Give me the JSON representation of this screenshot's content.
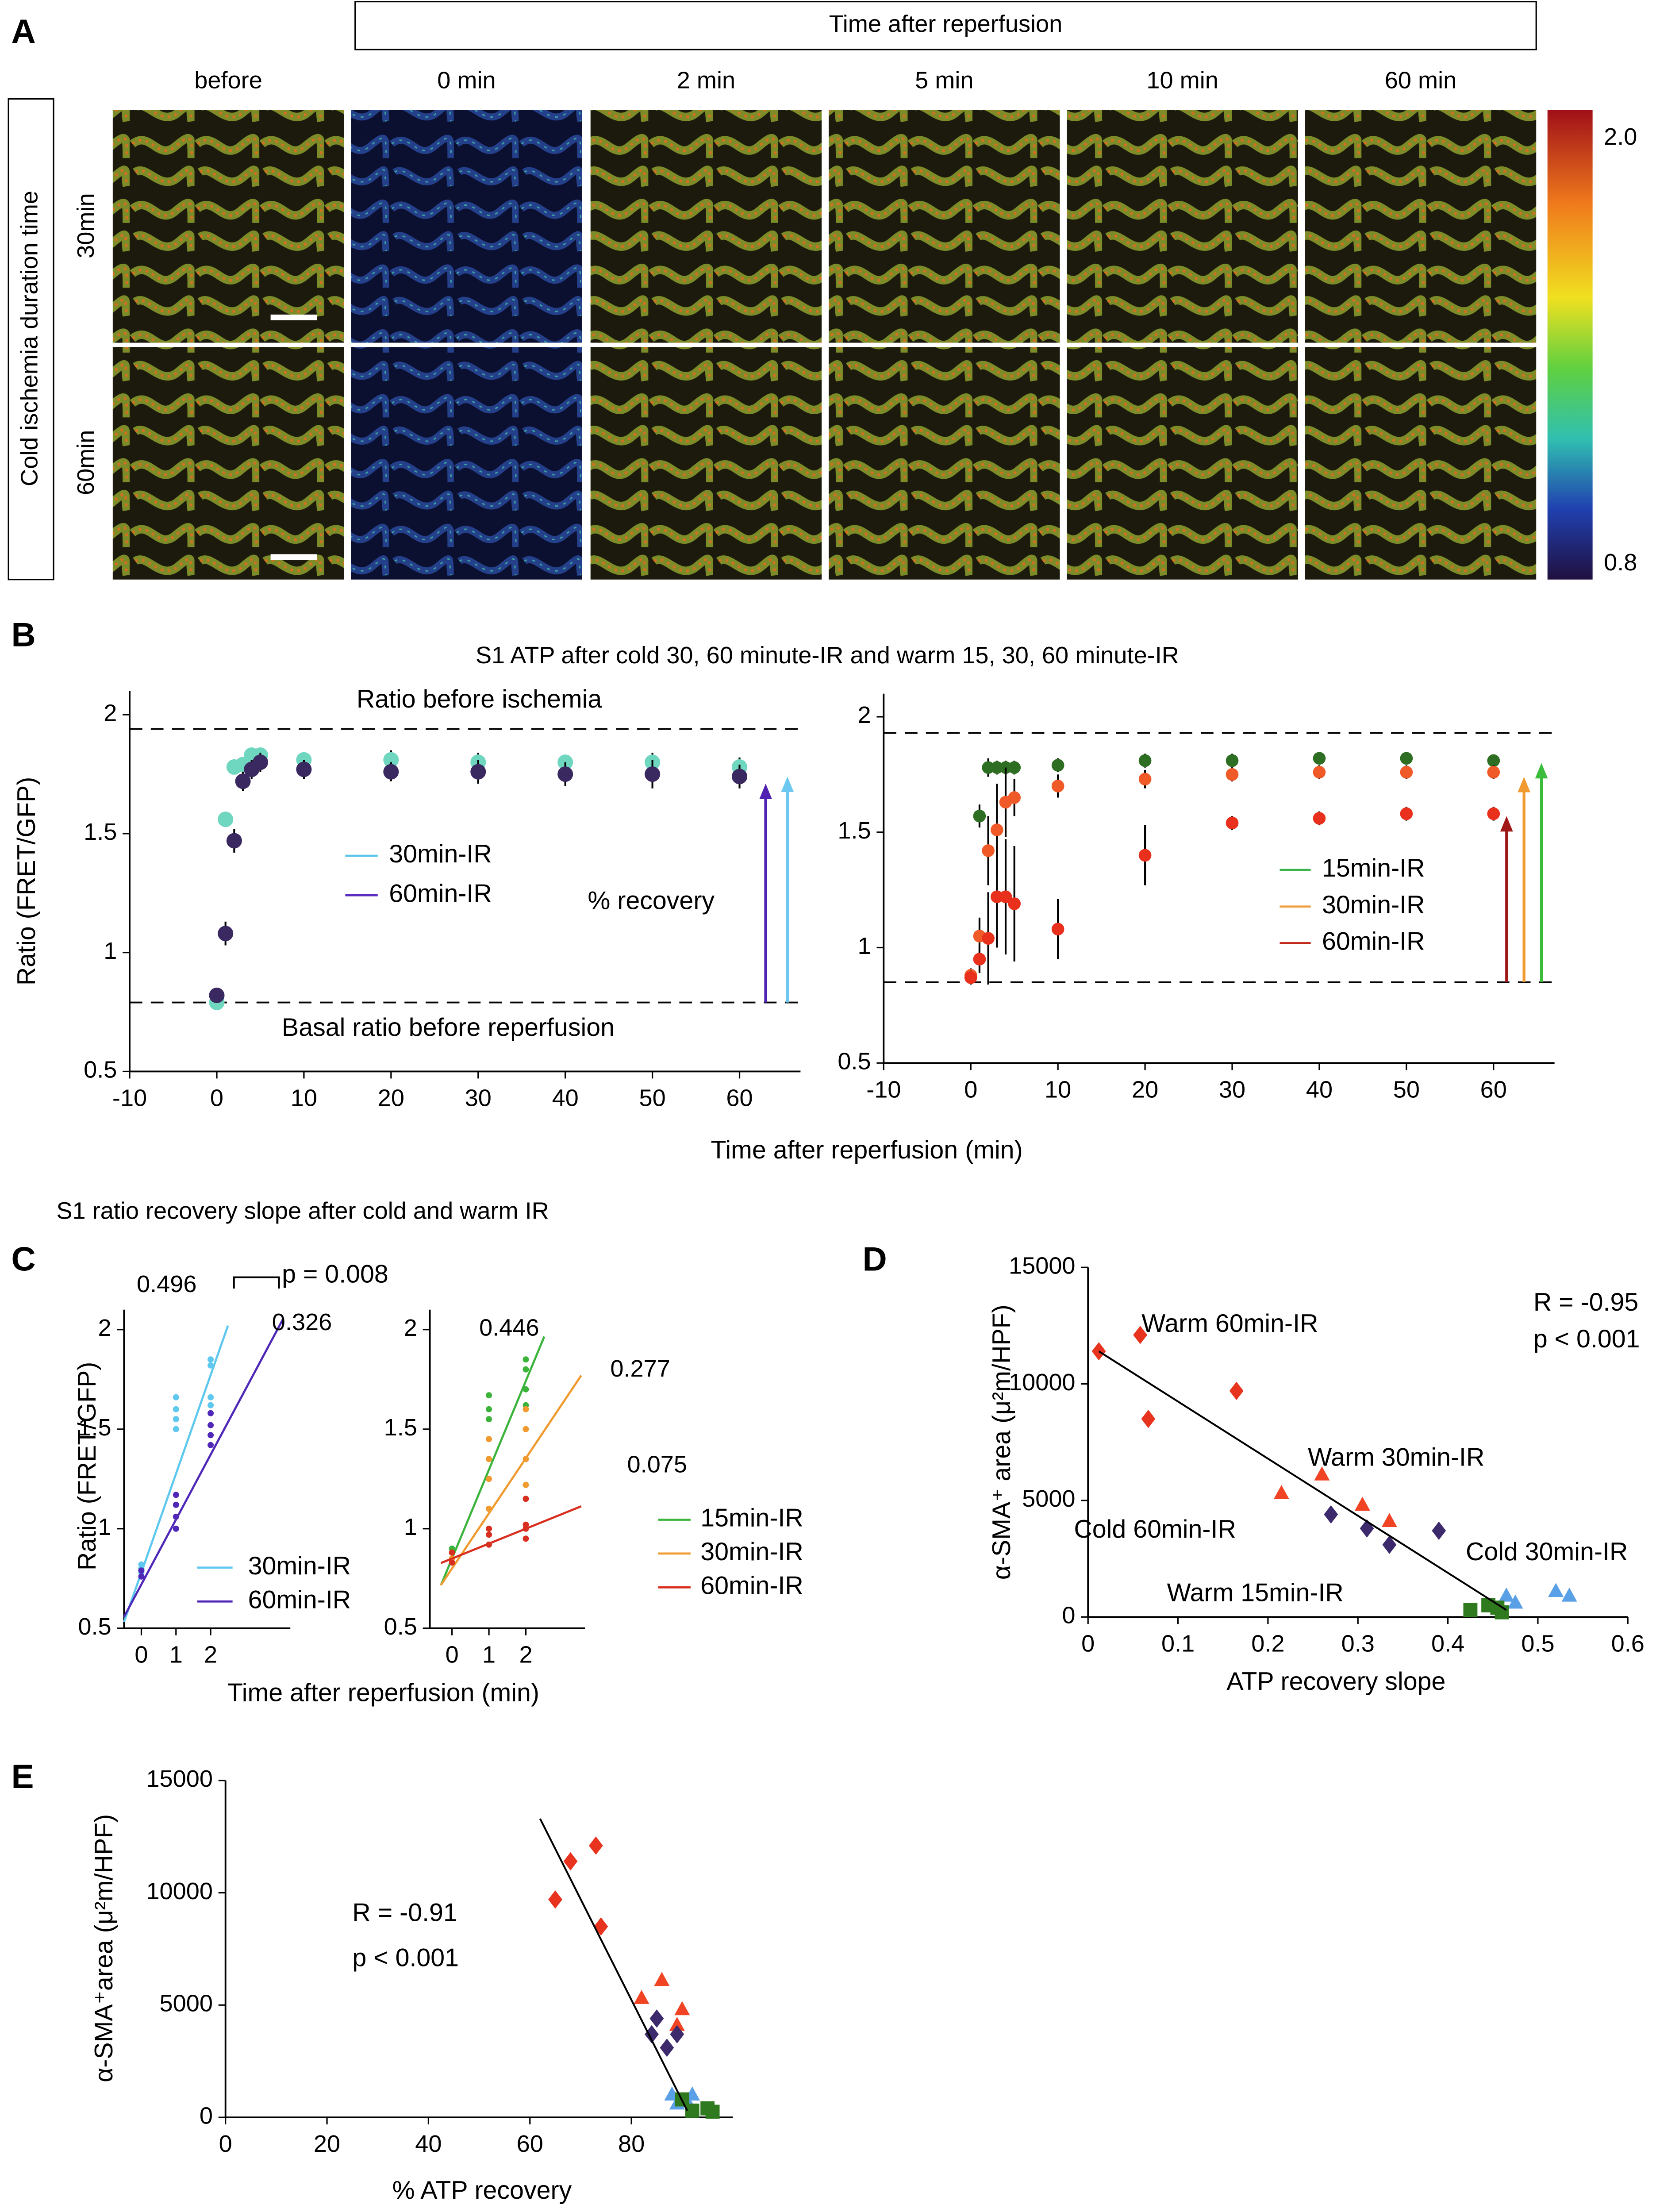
{
  "panel_a": {
    "label": "A",
    "header": "Time after reperfusion",
    "columns": [
      "before",
      "0 min",
      "2 min",
      "5 min",
      "10 min",
      "60 min"
    ],
    "rows": [
      "30min",
      "60min"
    ],
    "row_header": "Cold ischemia duration time",
    "colorbar": [
      {
        "value": 2.0,
        "label": "2.0"
      },
      0.8
    ]
  },
  "chart_data": [
    {
      "type": "scatter",
      "panel": "B",
      "title": "S1 ATP after cold 30, 60 minute-IR and warm 15, 30, 60 minute-IR",
      "x_label": "Time  after reperfusion (min)",
      "y_label": "Ratio (FRET/GFP)",
      "xlim": [
        -10,
        67
      ],
      "ylim": [
        0.5,
        2.1
      ],
      "xticks": [
        -10,
        0,
        10,
        20,
        30,
        40,
        50,
        60
      ],
      "yticks": [
        0.5,
        1,
        1.5,
        2
      ],
      "reference_lines": [
        1.94,
        0.79
      ],
      "annotations": [
        "Ratio before ischemia",
        "Basal ratio before reperfusion",
        "% recovery"
      ],
      "series": [
        {
          "name": "30min-IR",
          "color": "#5bc6ea",
          "marker_color": "#6fd6bf",
          "marker": "circle",
          "x": [
            0,
            1,
            2,
            3,
            4,
            5,
            10,
            20,
            30,
            40,
            50,
            60
          ],
          "values": [
            0.79,
            1.56,
            1.78,
            1.79,
            1.83,
            1.83,
            1.81,
            1.81,
            1.8,
            1.8,
            1.8,
            1.78
          ],
          "errors": [
            0.02,
            0.03,
            0.03,
            0.03,
            0.03,
            0.03,
            0.03,
            0.04,
            0.04,
            0.03,
            0.04,
            0.04
          ]
        },
        {
          "name": "60min-IR",
          "color": "#5a2cc0",
          "marker_color": "#3a2860",
          "marker": "circle",
          "x": [
            0,
            1,
            2,
            3,
            4,
            5,
            10,
            20,
            30,
            40,
            50,
            60
          ],
          "values": [
            0.82,
            1.08,
            1.47,
            1.72,
            1.77,
            1.8,
            1.77,
            1.76,
            1.76,
            1.75,
            1.75,
            1.74
          ],
          "errors": [
            0.03,
            0.05,
            0.05,
            0.04,
            0.04,
            0.04,
            0.04,
            0.04,
            0.05,
            0.05,
            0.06,
            0.05
          ]
        }
      ],
      "arrows": [
        {
          "x": 63,
          "from": 0.79,
          "to": 1.71,
          "color": "#5020b0"
        },
        {
          "x": 65.5,
          "from": 0.79,
          "to": 1.74,
          "color": "#6cc8f0"
        }
      ]
    },
    {
      "type": "scatter",
      "xlim": [
        -10,
        67
      ],
      "ylim": [
        0.5,
        2.1
      ],
      "xticks": [
        -10,
        0,
        10,
        20,
        30,
        40,
        50,
        60
      ],
      "yticks": [
        0.5,
        1,
        1.5,
        2
      ],
      "reference_lines": [
        1.93,
        0.85
      ],
      "series": [
        {
          "name": "15min-IR",
          "color": "#3cb44a",
          "marker_color": "#2e6e22",
          "marker": "circle",
          "x": [
            1,
            2,
            3,
            4,
            5,
            10,
            20,
            30,
            40,
            50,
            60
          ],
          "values": [
            1.57,
            1.78,
            1.78,
            1.78,
            1.78,
            1.79,
            1.81,
            1.81,
            1.82,
            1.82,
            1.81
          ],
          "errors": [
            0.05,
            0.04,
            0.03,
            0.03,
            0.03,
            0.03,
            0.03,
            0.03,
            0.02,
            0.02,
            0.02
          ]
        },
        {
          "name": "30min-IR",
          "color": "#f0a040",
          "marker_color": "#f05a28",
          "marker": "circle",
          "x": [
            0,
            1,
            2,
            3,
            4,
            5,
            10,
            20,
            30,
            40,
            50,
            60
          ],
          "values": [
            0.88,
            1.05,
            1.42,
            1.51,
            1.63,
            1.65,
            1.7,
            1.73,
            1.75,
            1.76,
            1.76,
            1.76
          ],
          "errors": [
            0.03,
            0.08,
            0.15,
            0.2,
            0.15,
            0.08,
            0.05,
            0.04,
            0.03,
            0.03,
            0.03,
            0.03
          ]
        },
        {
          "name": "60min-IR",
          "color": "#c02818",
          "marker_color": "#e8301c",
          "marker": "circle",
          "x": [
            0,
            1,
            2,
            3,
            4,
            5,
            10,
            20,
            30,
            40,
            50,
            60
          ],
          "values": [
            0.87,
            0.95,
            1.04,
            1.22,
            1.22,
            1.19,
            1.08,
            1.4,
            1.54,
            1.56,
            1.58,
            1.58
          ],
          "errors": [
            0.03,
            0.06,
            0.2,
            0.22,
            0.25,
            0.25,
            0.13,
            0.13,
            0.03,
            0.03,
            0.03,
            0.03
          ]
        }
      ],
      "arrows": [
        {
          "x": 61.5,
          "from": 0.85,
          "to": 1.57,
          "color": "#a01818"
        },
        {
          "x": 63.5,
          "from": 0.85,
          "to": 1.74,
          "color": "#f09a30"
        },
        {
          "x": 65.5,
          "from": 0.85,
          "to": 1.8,
          "color": "#3cbc3c"
        }
      ]
    },
    {
      "type": "scatter",
      "panel": "C",
      "title": "S1 ratio recovery slope after cold and warm IR",
      "x_label": "Time  after reperfusion (min)",
      "y_label": "Ratio (FRET/GFP)",
      "xlim": [
        -0.5,
        4.3
      ],
      "ylim": [
        0.5,
        2.1
      ],
      "xticks": [
        0,
        1,
        2
      ],
      "yticks": [
        0.5,
        1,
        1.5,
        2
      ],
      "annotations": [
        "p = 0.008"
      ],
      "series": [
        {
          "name": "30min-IR",
          "color": "#5ec8ee",
          "marker": "circle",
          "x": [
            0,
            0,
            0,
            0,
            1,
            1,
            1,
            1,
            2,
            2,
            2,
            2
          ],
          "values": [
            0.76,
            0.78,
            0.8,
            0.82,
            1.5,
            1.55,
            1.6,
            1.66,
            1.62,
            1.66,
            1.82,
            1.85
          ],
          "fit": {
            "slope": 0.496,
            "intercept": 0.78,
            "x": [
              -0.5,
              2.5
            ]
          }
        },
        {
          "name": "60min-IR",
          "color": "#5028b8",
          "marker": "circle",
          "x": [
            0,
            0,
            1,
            1,
            1,
            1,
            2,
            2,
            2,
            2
          ],
          "values": [
            0.76,
            0.79,
            1.0,
            1.06,
            1.12,
            1.17,
            1.42,
            1.47,
            1.52,
            1.58
          ],
          "fit": {
            "slope": 0.326,
            "intercept": 0.72,
            "x": [
              -0.5,
              4.1
            ]
          }
        }
      ]
    },
    {
      "type": "scatter",
      "xlim": [
        -0.6,
        3.6
      ],
      "ylim": [
        0.5,
        2.1
      ],
      "xticks": [
        0,
        1,
        2
      ],
      "yticks": [
        0.5,
        1,
        1.5,
        2
      ],
      "series": [
        {
          "name": "15min-IR",
          "color": "#3cb43c",
          "marker": "circle",
          "x": [
            0,
            0,
            0,
            1,
            1,
            1,
            2,
            2,
            2,
            2
          ],
          "values": [
            0.85,
            0.88,
            0.9,
            1.55,
            1.6,
            1.67,
            1.62,
            1.7,
            1.8,
            1.85
          ],
          "fit": {
            "slope": 0.446,
            "intercept": 0.85,
            "x": [
              -0.3,
              2.5
            ]
          }
        },
        {
          "name": "30min-IR",
          "color": "#f09a30",
          "marker": "circle",
          "x": [
            0,
            0,
            1,
            1,
            1,
            1,
            2,
            2,
            2,
            2
          ],
          "values": [
            0.85,
            0.88,
            1.1,
            1.25,
            1.35,
            1.45,
            1.22,
            1.35,
            1.5,
            1.6
          ],
          "fit": {
            "slope": 0.277,
            "intercept": 0.8,
            "x": [
              -0.3,
              3.5
            ]
          }
        },
        {
          "name": "60min-IR",
          "color": "#d83020",
          "marker": "circle",
          "x": [
            0,
            0,
            1,
            1,
            1,
            2,
            2,
            2,
            2
          ],
          "values": [
            0.83,
            0.88,
            0.92,
            0.97,
            1.0,
            0.95,
            1.0,
            1.02,
            1.15
          ],
          "fit": {
            "slope": 0.075,
            "intercept": 0.85,
            "x": [
              -0.3,
              3.5
            ]
          }
        }
      ]
    },
    {
      "type": "scatter",
      "panel": "D",
      "x_label": "ATP recovery slope",
      "y_label": "α-SMA⁺ area (μ²m/HPF)",
      "xlim": [
        0,
        0.6
      ],
      "ylim": [
        0,
        15000
      ],
      "xticks": [
        0,
        0.1,
        0.2,
        0.3,
        0.4,
        0.5,
        0.6
      ],
      "yticks": [
        0,
        5000,
        10000,
        15000
      ],
      "annotations": [
        "R = -0.95",
        "p < 0.001"
      ],
      "fit": {
        "x": [
          0.012,
          0.465
        ],
        "values": [
          11400,
          300
        ]
      },
      "series": [
        {
          "name": "Warm 60min-IR",
          "color": "#e8341e",
          "label_color": "#d42a1e",
          "marker": "diamond",
          "x": [
            0.012,
            0.058,
            0.067,
            0.165
          ],
          "values": [
            11400,
            12100,
            8500,
            9700
          ]
        },
        {
          "name": "Warm 30min-IR",
          "color": "#f04424",
          "label_color": "#e8901e",
          "marker": "triangle",
          "x": [
            0.215,
            0.26,
            0.305,
            0.335
          ],
          "values": [
            5300,
            6100,
            4800,
            4100
          ]
        },
        {
          "name": "Cold 60min-IR",
          "color": "#3c2a6c",
          "label_color": "#3a1fa8",
          "marker": "diamond",
          "x": [
            0.27,
            0.31,
            0.335,
            0.39
          ],
          "values": [
            4400,
            3800,
            3100,
            3700
          ]
        },
        {
          "name": "Cold 30min-IR",
          "color": "#5aa0e6",
          "label_color": "#3cb4e8",
          "marker": "triangle",
          "x": [
            0.465,
            0.475,
            0.52,
            0.535
          ],
          "values": [
            900,
            600,
            1100,
            900
          ]
        },
        {
          "name": "Warm 15min-IR",
          "color": "#2f7a1e",
          "label_color": "#3cbc3c",
          "marker": "square",
          "x": [
            0.425,
            0.445,
            0.455,
            0.46
          ],
          "values": [
            300,
            500,
            400,
            200
          ]
        }
      ]
    },
    {
      "type": "scatter",
      "panel": "E",
      "x_label": "% ATP recovery",
      "y_label": "α-SMA⁺area (μ²m/HPF)",
      "xlim": [
        0,
        100
      ],
      "ylim": [
        0,
        15000
      ],
      "xticks": [
        0,
        20,
        40,
        60,
        80
      ],
      "yticks": [
        0,
        5000,
        10000,
        15000
      ],
      "annotations": [
        "R = -0.91",
        "p < 0.001"
      ],
      "fit": {
        "x": [
          62,
          91
        ],
        "values": [
          13300,
          300
        ]
      },
      "series": [
        {
          "color": "#e8341e",
          "marker": "diamond",
          "x": [
            65,
            68,
            73,
            74
          ],
          "values": [
            9700,
            11400,
            12100,
            8500
          ]
        },
        {
          "color": "#f04424",
          "marker": "triangle",
          "x": [
            82,
            86,
            89,
            90
          ],
          "values": [
            5300,
            6100,
            4100,
            4800
          ]
        },
        {
          "color": "#3c2a6c",
          "marker": "diamond",
          "x": [
            84,
            85,
            87,
            89
          ],
          "values": [
            3700,
            4400,
            3100,
            3700
          ]
        },
        {
          "color": "#5aa0e6",
          "marker": "triangle",
          "x": [
            88,
            89,
            91,
            92
          ],
          "values": [
            1000,
            600,
            700,
            1000
          ]
        },
        {
          "color": "#2f7a1e",
          "marker": "square",
          "x": [
            90,
            92,
            95,
            96
          ],
          "values": [
            800,
            300,
            400,
            250
          ]
        }
      ]
    }
  ]
}
